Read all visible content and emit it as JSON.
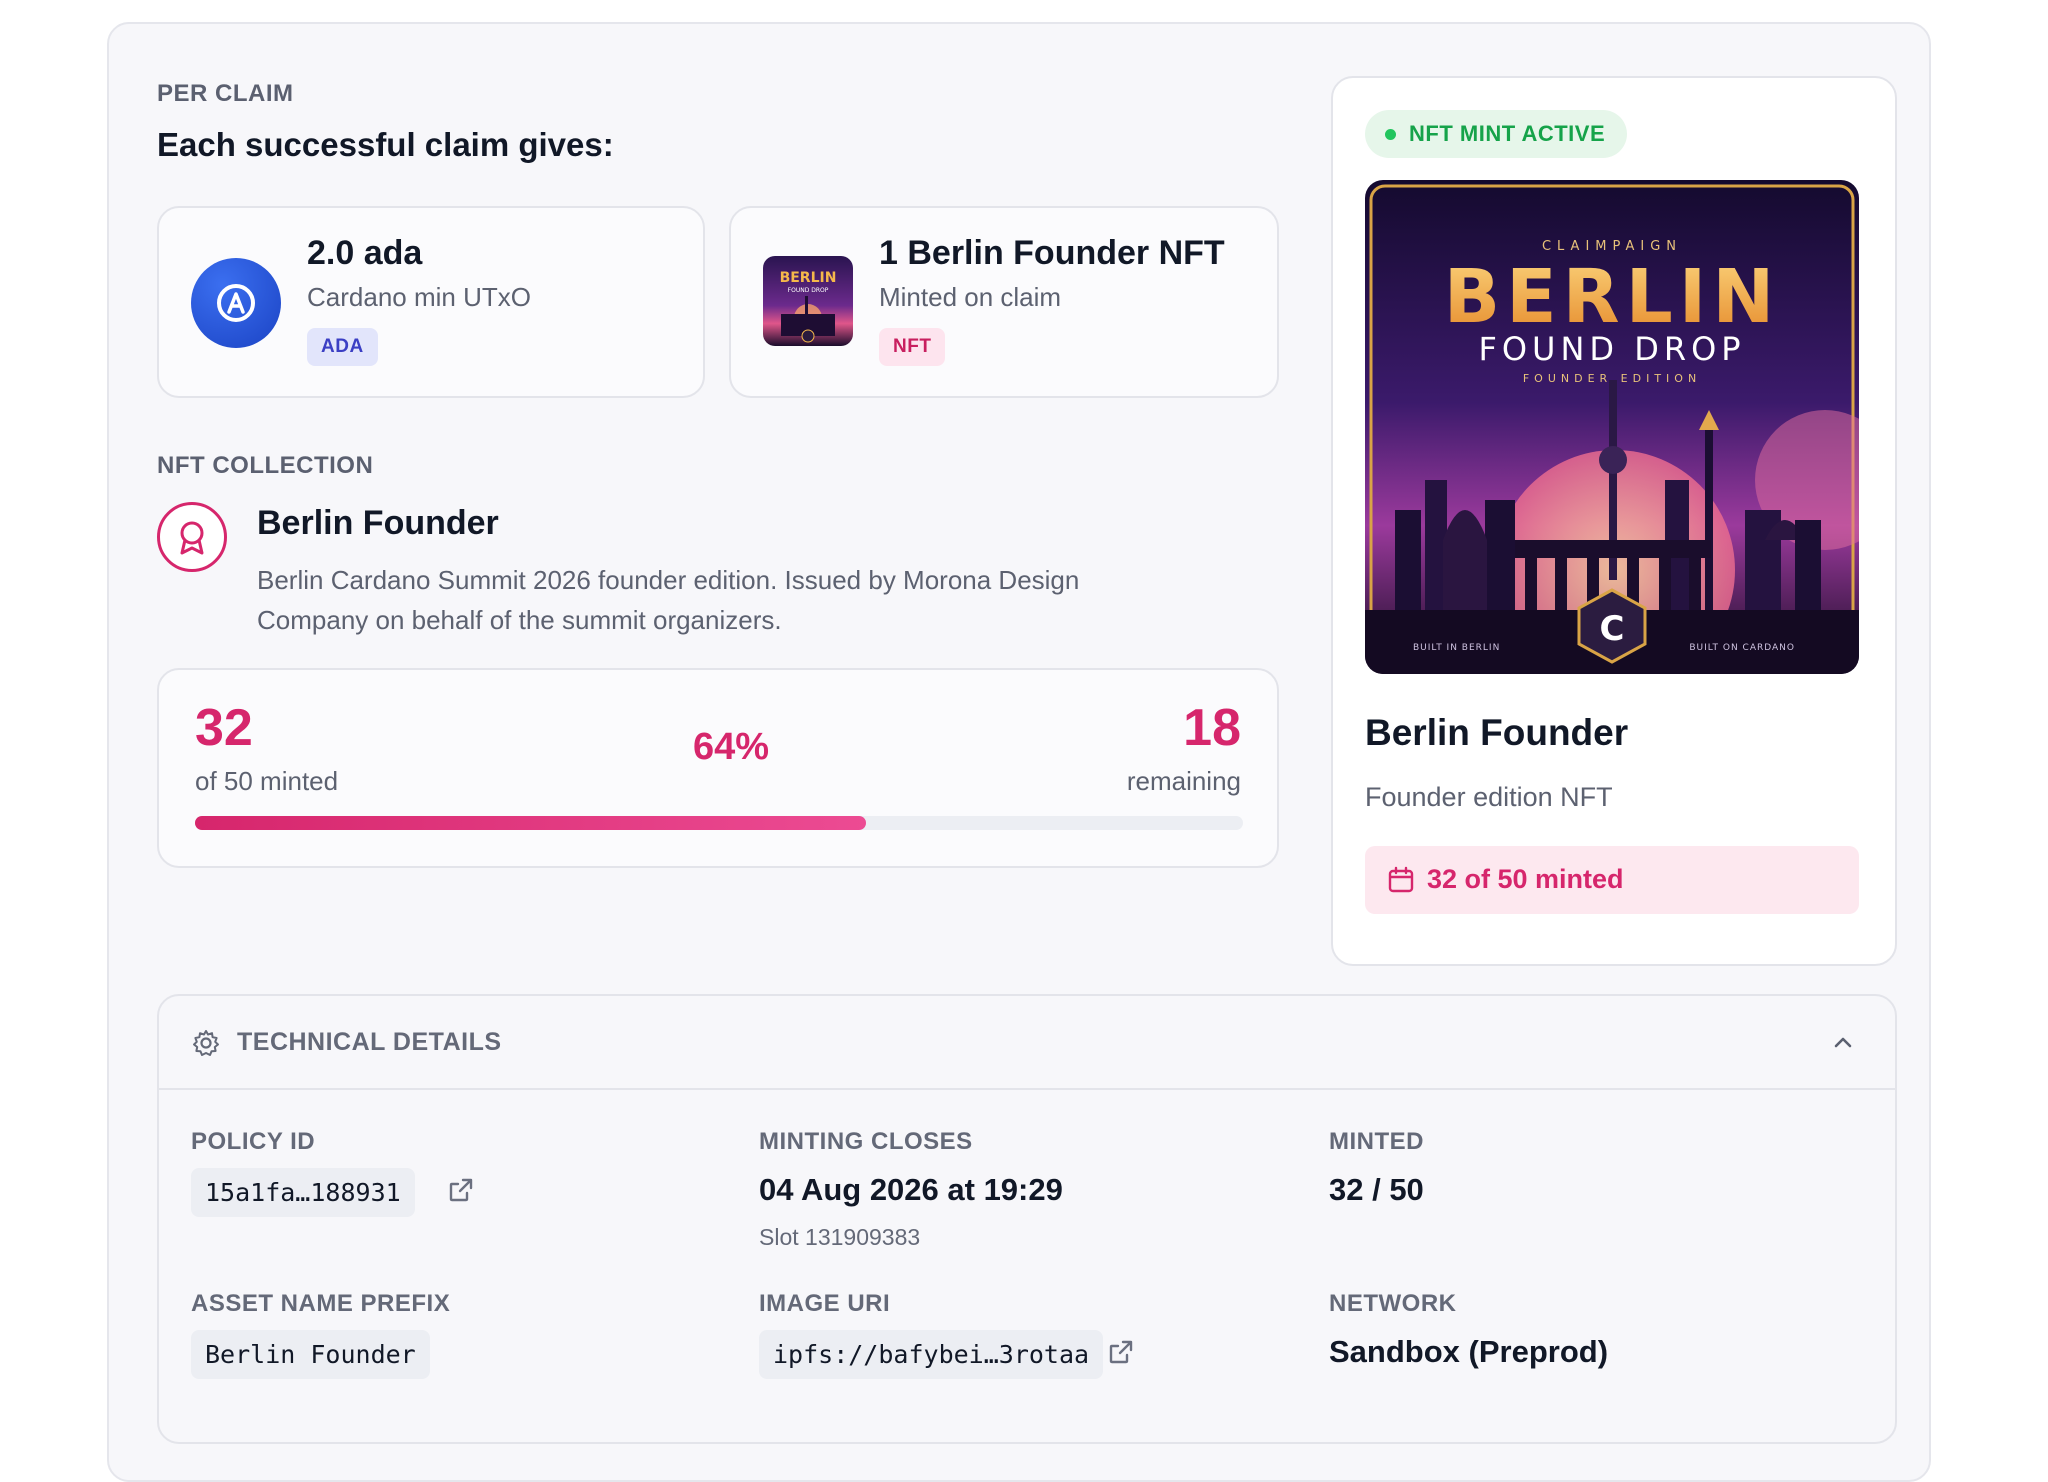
{
  "per_claim": {
    "section_label": "PER CLAIM",
    "heading": "Each successful claim gives:",
    "rewards": [
      {
        "title": "2.0 ada",
        "subtitle": "Cardano min UTxO",
        "badge": "ADA",
        "icon": "cardano-ada-icon"
      },
      {
        "title": "1 Berlin Founder NFT",
        "subtitle": "Minted on claim",
        "badge": "NFT",
        "icon": "nft-thumbnail"
      }
    ]
  },
  "collection": {
    "section_label": "NFT COLLECTION",
    "name": "Berlin Founder",
    "description_line1": "Berlin Cardano Summit 2026 founder edition. Issued by Morona Design",
    "description_line2": "Company on behalf of the summit organizers.",
    "icon": "award-ribbon-icon"
  },
  "progress": {
    "minted": "32",
    "minted_label": "of 50 minted",
    "percent_label": "64%",
    "percent": 0.64,
    "remaining": "18",
    "remaining_label": "remaining"
  },
  "nft_card": {
    "status_badge": "NFT MINT ACTIVE",
    "art": {
      "top": "CLAIMPAIGN",
      "title": "BERLIN",
      "subtitle": "FOUND DROP",
      "edition": "FOUNDER EDITION",
      "footer_left": "BUILT IN BERLIN",
      "footer_right": "BUILT ON CARDANO",
      "emblem": "C"
    },
    "name": "Berlin Founder",
    "description": "Founder edition NFT",
    "minted_pill": "32 of 50 minted"
  },
  "technical": {
    "header": "TECHNICAL DETAILS",
    "policy_id_label": "POLICY ID",
    "policy_id": "15a1fa…188931",
    "minting_closes_label": "MINTING CLOSES",
    "minting_closes": "04 Aug 2026 at 19:29",
    "slot": "Slot 131909383",
    "minted_label": "MINTED",
    "minted": "32 / 50",
    "asset_prefix_label": "ASSET NAME PREFIX",
    "asset_prefix": "Berlin Founder",
    "image_uri_label": "IMAGE URI",
    "image_uri": "ipfs://bafybei…3rotaa",
    "network_label": "NETWORK",
    "network": "Sandbox (Preprod)"
  },
  "colors": {
    "accent_pink": "#d6266c",
    "ada_blue": "#1f4fd1",
    "active_green": "#16a34a"
  }
}
